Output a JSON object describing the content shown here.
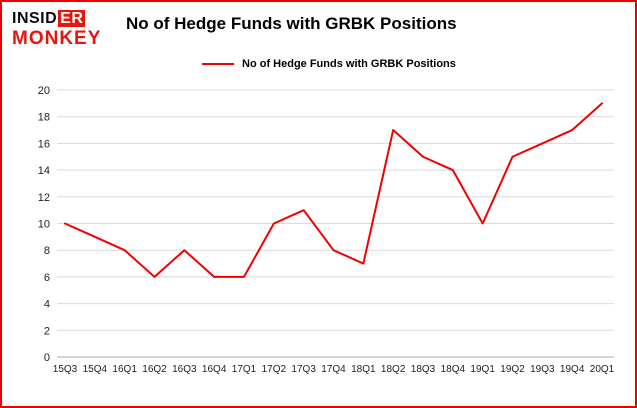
{
  "logo": {
    "insid": "INSID",
    "er": "ER",
    "monkey": "MONKEY"
  },
  "title": "No of Hedge Funds with GRBK Positions",
  "legend": {
    "label": "No of Hedge Funds with GRBK Positions"
  },
  "colors": {
    "line": "#f20000",
    "border": "#f20000",
    "logo_red": "#e8140e",
    "grid": "#d9d9d9",
    "axis": "#aaaaaa",
    "tick_text": "#222222"
  },
  "chart_data": {
    "type": "line",
    "title": "No of Hedge Funds with GRBK Positions",
    "categories": [
      "15Q3",
      "15Q4",
      "16Q1",
      "16Q2",
      "16Q3",
      "16Q4",
      "17Q1",
      "17Q2",
      "17Q3",
      "17Q4",
      "18Q1",
      "18Q2",
      "18Q3",
      "18Q4",
      "19Q1",
      "19Q2",
      "19Q3",
      "19Q4",
      "20Q1"
    ],
    "values": [
      10,
      9,
      8,
      6,
      8,
      6,
      6,
      10,
      11,
      8,
      7,
      17,
      15,
      14,
      10,
      15,
      16,
      17,
      19
    ],
    "xlabel": "",
    "ylabel": "",
    "ylim": [
      0,
      20
    ],
    "ytick_step": 2,
    "grid": true,
    "legend_position": "top-center",
    "line_color": "#f20000"
  }
}
